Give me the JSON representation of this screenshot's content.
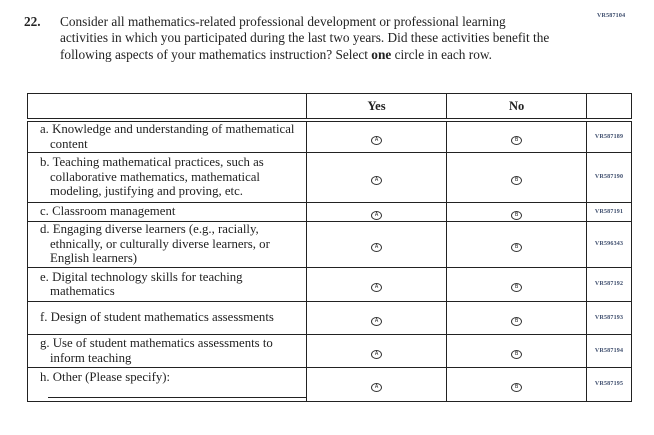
{
  "top_code": "VR587104",
  "question": {
    "number": "22.",
    "text": "Consider all mathematics-related professional development or professional learning activities in which you participated during the last two years. Did these activities benefit the following aspects of your mathematics instruction? Select ",
    "emph": "one",
    "text_end": " circle in each row."
  },
  "headers": {
    "yes": "Yes",
    "no": "No"
  },
  "bubbles": {
    "yes": "A",
    "no": "B"
  },
  "rows": [
    {
      "label": "a. Knowledge and understanding of mathematical content",
      "code": "VR587189",
      "h": 32
    },
    {
      "label": "b. Teaching mathematical practices, such as collaborative mathematics, mathematical modeling, justifying and proving, etc.",
      "code": "VR587190",
      "h": 50
    },
    {
      "label": "c. Classroom management",
      "code": "VR587191",
      "h": 17
    },
    {
      "label": "d. Engaging diverse learners (e.g., racially, ethnically, or culturally diverse learners, or English learners)",
      "code": "VR596343",
      "h": 46
    },
    {
      "label": "e. Digital technology skills for teaching mathematics",
      "code": "VR587192",
      "h": 34
    },
    {
      "label": "f. Design of student mathematics assessments",
      "code": "VR587193",
      "h": 33
    },
    {
      "label": "g. Use of student mathematics assessments to inform teaching",
      "code": "VR587194",
      "h": 33
    },
    {
      "label": "h. Other (Please specify):",
      "code": "VR587195",
      "h": 34
    }
  ]
}
